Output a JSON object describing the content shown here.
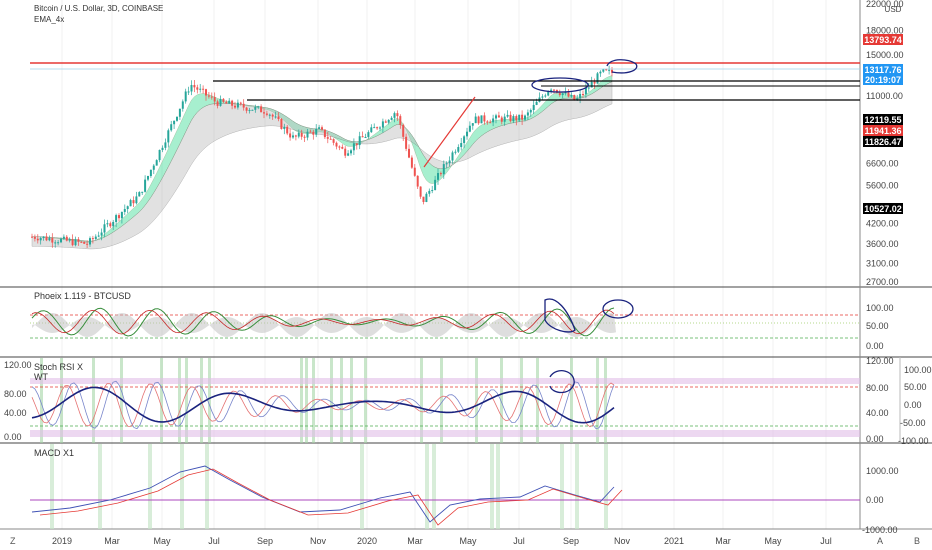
{
  "header": {
    "symbol_title": "Bitcoin / U.S. Dollar, 3D, COINBASE",
    "indicator": "EMA_4x",
    "currency": "USD"
  },
  "colors": {
    "up": "#26a69a",
    "down": "#ef5350",
    "resistance": "#e53935",
    "level": "#000000",
    "annotation": "#1a237e",
    "ema_fill_green": "#3ddc97",
    "ema_fill_grey": "#bdbdbd"
  },
  "panes": {
    "phoenix": {
      "title": "Phoeix 1.119 - BTCUSD",
      "axis": [
        "100.00",
        "50.00",
        "0.00"
      ]
    },
    "stoch": {
      "title": "Stoch RSI X",
      "subtitle": "WT",
      "left_axis": [
        "120.00",
        "80.00",
        "40.00",
        "0.00"
      ],
      "right_axis": [
        "120.00",
        "100.00",
        "50.00",
        "0.00",
        "-50.00",
        "-100.00"
      ],
      "right_top": "120.00"
    },
    "macd": {
      "title": "MACD X1",
      "axis": [
        "1000.00",
        "0.00",
        "-1000.00"
      ]
    }
  },
  "price_axis": [
    "22000.00",
    "18000.00",
    "15000.00",
    "11000.00",
    "6600.00",
    "5600.00",
    "4200.00",
    "3600.00",
    "3100.00",
    "2700.00"
  ],
  "price_badges": [
    {
      "label": "13793.74",
      "color": "#e53935"
    },
    {
      "label": "13117.76",
      "color": "#2196f3"
    },
    {
      "label": "20:19:07",
      "color": "#2196f3"
    },
    {
      "label": "12119.55",
      "color": "#000000"
    },
    {
      "label": "11941.36",
      "color": "#e53935"
    },
    {
      "label": "11826.47",
      "color": "#000000"
    },
    {
      "label": "10527.02",
      "color": "#000000"
    }
  ],
  "time_axis": [
    "2019",
    "Mar",
    "May",
    "Jul",
    "Sep",
    "Nov",
    "2020",
    "Mar",
    "May",
    "Jul",
    "Sep",
    "Nov",
    "2021",
    "Mar",
    "May",
    "Jul"
  ],
  "corner_labels": {
    "left": "Z",
    "a": "A",
    "b": "B"
  },
  "chart_data": {
    "type": "candlestick",
    "title": "Bitcoin / U.S. Dollar, 3D, COINBASE",
    "x_range": [
      "2018-12",
      "2021-08"
    ],
    "y_scale": "log",
    "y_range": [
      2700,
      22000
    ],
    "approx_close_path": [
      {
        "t": "2018-12",
        "price": 3800
      },
      {
        "t": "2019-02",
        "price": 3600
      },
      {
        "t": "2019-04",
        "price": 5200
      },
      {
        "t": "2019-06",
        "price": 12000
      },
      {
        "t": "2019-07",
        "price": 10500
      },
      {
        "t": "2019-09",
        "price": 9800
      },
      {
        "t": "2019-10",
        "price": 8000
      },
      {
        "t": "2019-11",
        "price": 8500
      },
      {
        "t": "2019-12",
        "price": 7200
      },
      {
        "t": "2020-02",
        "price": 9800
      },
      {
        "t": "2020-03",
        "price": 4900
      },
      {
        "t": "2020-05",
        "price": 9200
      },
      {
        "t": "2020-07",
        "price": 9300
      },
      {
        "t": "2020-08",
        "price": 11800
      },
      {
        "t": "2020-09",
        "price": 10600
      },
      {
        "t": "2020-10",
        "price": 13117.76
      }
    ],
    "horizontal_levels": [
      13793.74,
      12119.55,
      11941.36,
      10527.02
    ],
    "last_price": 13117.76
  }
}
